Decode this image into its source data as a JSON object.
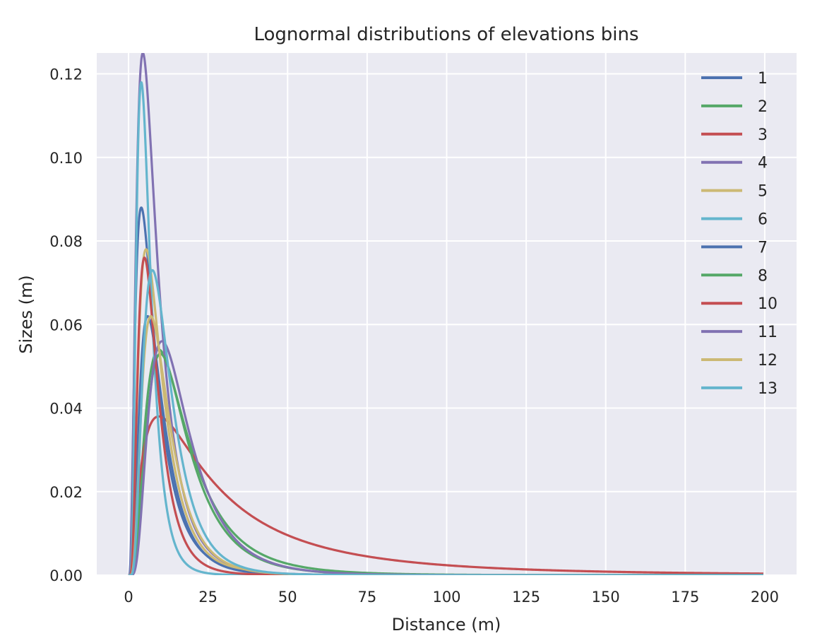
{
  "chart_data": {
    "type": "line",
    "title": "Lognormal distributions of elevations bins",
    "xlabel": "Distance (m)",
    "ylabel": "Sizes (m)",
    "xlim": [
      -10,
      210
    ],
    "ylim": [
      0,
      0.125
    ],
    "xticks": [
      0,
      25,
      50,
      75,
      100,
      125,
      150,
      175,
      200
    ],
    "xtick_labels": [
      "0",
      "25",
      "50",
      "75",
      "100",
      "125",
      "150",
      "175",
      "200"
    ],
    "yticks": [
      0.0,
      0.02,
      0.04,
      0.06,
      0.08,
      0.1,
      0.12
    ],
    "ytick_labels": [
      "0.00",
      "0.02",
      "0.04",
      "0.06",
      "0.08",
      "0.10",
      "0.12"
    ],
    "grid": true,
    "legend_position": "top-right",
    "series": [
      {
        "name": "1",
        "color": "#4c72b0",
        "mode": 4.0,
        "sigma": 0.75,
        "peak_y": 0.088
      },
      {
        "name": "2",
        "color": "#55a868",
        "mode": 9.5,
        "sigma": 0.68,
        "peak_y": 0.054
      },
      {
        "name": "3",
        "color": "#c44e52",
        "mode": 9.5,
        "sigma": 1.0,
        "peak_y": 0.038
      },
      {
        "name": "4",
        "color": "#8172b2",
        "mode": 4.5,
        "sigma": 0.7,
        "peak_y": 0.125
      },
      {
        "name": "5",
        "color": "#ccb974",
        "mode": 5.5,
        "sigma": 0.65,
        "peak_y": 0.078
      },
      {
        "name": "6",
        "color": "#64b5cd",
        "mode": 4.0,
        "sigma": 0.55,
        "peak_y": 0.118
      },
      {
        "name": "7",
        "color": "#4c72b0",
        "mode": 6.0,
        "sigma": 0.62,
        "peak_y": 0.062
      },
      {
        "name": "8",
        "color": "#55a868",
        "mode": 10.0,
        "sigma": 0.62,
        "peak_y": 0.053
      },
      {
        "name": "10",
        "color": "#c44e52",
        "mode": 5.0,
        "sigma": 0.6,
        "peak_y": 0.076
      },
      {
        "name": "11",
        "color": "#8172b2",
        "mode": 10.5,
        "sigma": 0.6,
        "peak_y": 0.056
      },
      {
        "name": "12",
        "color": "#ccb974",
        "mode": 7.0,
        "sigma": 0.6,
        "peak_y": 0.062
      },
      {
        "name": "13",
        "color": "#64b5cd",
        "mode": 7.5,
        "sigma": 0.58,
        "peak_y": 0.073
      }
    ]
  }
}
